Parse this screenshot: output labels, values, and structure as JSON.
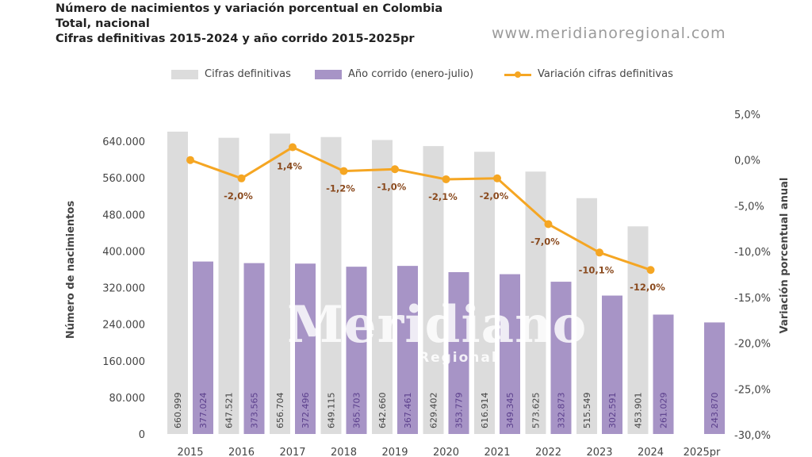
{
  "header": {
    "title_line1": "Número de nacimientos y variación porcentual en Colombia",
    "title_line2": "Total, nacional",
    "title_line3": "Cifras definitivas 2015-2024 y año corrido 2015-2025pr"
  },
  "watermark": {
    "url": "www.meridianoregional.com",
    "logo": "Meridiano",
    "logo_sub": "Regional"
  },
  "colors": {
    "definitivas": "#dcdcdc",
    "ano_corrido": "#a794c6",
    "variacion": "#f5a623",
    "variacion_label": "#8a4a1e"
  },
  "chart_data": {
    "type": "bar",
    "categories": [
      "2015",
      "2016",
      "2017",
      "2018",
      "2019",
      "2020",
      "2021",
      "2022",
      "2023",
      "2024",
      "2025pr"
    ],
    "series": [
      {
        "name": "Cifras definitivas",
        "type": "bar",
        "axis": "left",
        "values": [
          660999,
          647521,
          656704,
          649115,
          642660,
          629402,
          616914,
          573625,
          515549,
          453901,
          null
        ],
        "labels": [
          "660.999",
          "647.521",
          "656.704",
          "649.115",
          "642.660",
          "629.402",
          "616.914",
          "573.625",
          "515.549",
          "453.901",
          ""
        ]
      },
      {
        "name": "Año corrido (enero-julio)",
        "type": "bar",
        "axis": "left",
        "values": [
          377024,
          373565,
          372496,
          365703,
          367461,
          353779,
          349345,
          332873,
          302591,
          261029,
          243870
        ],
        "labels": [
          "377.024",
          "373.565",
          "372.496",
          "365.703",
          "367.461",
          "353.779",
          "349.345",
          "332.873",
          "302.591",
          "261.029",
          "243.870"
        ]
      },
      {
        "name": "Variación cifras definitivas",
        "type": "line",
        "axis": "right",
        "values": [
          0.0,
          -2.0,
          1.4,
          -1.2,
          -1.0,
          -2.1,
          -2.0,
          -7.0,
          -10.1,
          -12.0,
          null
        ],
        "labels": [
          "",
          "-2,0%",
          "1,4%",
          "-1,2%",
          "-1,0%",
          "-2,1%",
          "-2,0%",
          "-7,0%",
          "-10,1%",
          "-12,0%",
          ""
        ]
      }
    ],
    "ylabel": "Número de nacimientos",
    "ylabel_right": "Variación porcentual anual",
    "ylim": [
      0,
      640000
    ],
    "yticks": [
      "0",
      "80.000",
      "160.000",
      "240.000",
      "320.000",
      "400.000",
      "480.000",
      "560.000",
      "640.000"
    ],
    "ylim_right": [
      -30,
      5
    ],
    "yticks_right": [
      "-30,0%",
      "-25,0%",
      "-20,0%",
      "-15,0%",
      "-10,0%",
      "-5,0%",
      "0,0%",
      "5,0%"
    ],
    "legend_position": "top"
  }
}
